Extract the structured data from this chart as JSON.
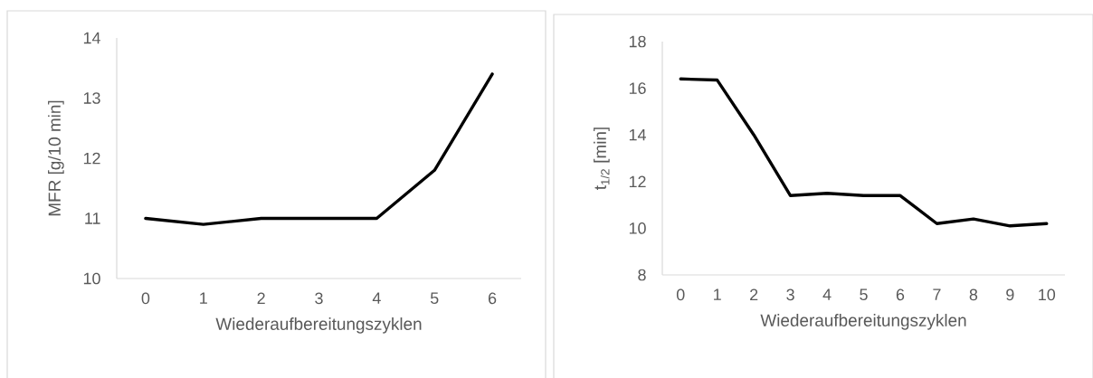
{
  "chart_data": [
    {
      "type": "line",
      "categories": [
        "0",
        "1",
        "2",
        "3",
        "4",
        "5",
        "6"
      ],
      "xlabel": "Wiederaufbereitungszyklen",
      "ylabel": "MFR [g/10 min]",
      "ylim": [
        10,
        14
      ],
      "yticks": [
        10,
        11,
        12,
        13,
        14
      ],
      "series": [
        {
          "color": "#000000",
          "values": [
            11.0,
            10.9,
            11.0,
            11.0,
            11.0,
            11.8,
            13.4
          ]
        }
      ]
    },
    {
      "type": "line",
      "categories": [
        "0",
        "1",
        "2",
        "3",
        "4",
        "5",
        "6",
        "7",
        "8",
        "9",
        "10"
      ],
      "xlabel": "Wiederaufbereitungszyklen",
      "ylabel": "t$_{1/2}$ [min]",
      "ylim": [
        8,
        18
      ],
      "yticks": [
        8,
        10,
        12,
        14,
        16,
        18
      ],
      "series": [
        {
          "color": "#000000",
          "values": [
            16.4,
            16.35,
            14.0,
            11.4,
            11.5,
            11.4,
            11.4,
            10.2,
            10.4,
            10.1,
            10.2
          ]
        }
      ]
    }
  ]
}
